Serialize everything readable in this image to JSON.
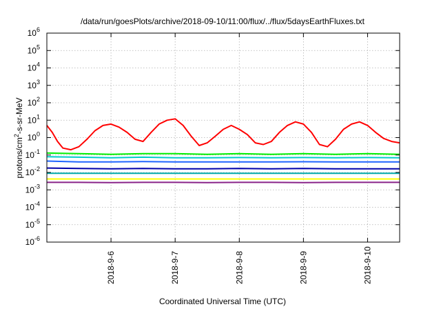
{
  "chart_data": {
    "type": "line",
    "title": "/data/run/goesPlots/archive/2018-09-10/11:00/flux/../flux/5daysEarthFluxes.txt",
    "xlabel": "Coordinated Universal Time (UTC)",
    "ylabel": {
      "prefix": "protons/cm",
      "sup": "2",
      "suffix": "-s-sr-MeV"
    },
    "y_scale": "log",
    "ylim": [
      1e-06,
      1000000.0
    ],
    "xlim": [
      "2018-09-05 00:00",
      "2018-09-10 12:00"
    ],
    "grid": true,
    "legend": "none",
    "y_ticks": [
      {
        "base": "10",
        "exp": "-6"
      },
      {
        "base": "10",
        "exp": "-5"
      },
      {
        "base": "10",
        "exp": "-4"
      },
      {
        "base": "10",
        "exp": "-3"
      },
      {
        "base": "10",
        "exp": "-2"
      },
      {
        "base": "10",
        "exp": "-1"
      },
      {
        "base": "10",
        "exp": "0"
      },
      {
        "base": "10",
        "exp": "1"
      },
      {
        "base": "10",
        "exp": "2"
      },
      {
        "base": "10",
        "exp": "3"
      },
      {
        "base": "10",
        "exp": "4"
      },
      {
        "base": "10",
        "exp": "5"
      },
      {
        "base": "10",
        "exp": "6"
      }
    ],
    "x_ticks": [
      {
        "label": "2018-9-6",
        "date": "2018-09-06"
      },
      {
        "label": "2018-9-7",
        "date": "2018-09-07"
      },
      {
        "label": "2018-9-8",
        "date": "2018-09-08"
      },
      {
        "label": "2018-9-9",
        "date": "2018-09-09"
      },
      {
        "label": "2018-9-10",
        "date": "2018-09-10"
      }
    ],
    "series": [
      {
        "color": "#ff0000",
        "x": [
          "2018-09-05 00:00",
          "2018-09-05 02:00",
          "2018-09-05 04:00",
          "2018-09-05 06:00",
          "2018-09-05 09:00",
          "2018-09-05 12:00",
          "2018-09-05 15:00",
          "2018-09-05 18:00",
          "2018-09-05 21:00",
          "2018-09-06 00:00",
          "2018-09-06 03:00",
          "2018-09-06 06:00",
          "2018-09-06 09:00",
          "2018-09-06 12:00",
          "2018-09-06 15:00",
          "2018-09-06 18:00",
          "2018-09-06 21:00",
          "2018-09-07 00:00",
          "2018-09-07 03:00",
          "2018-09-07 06:00",
          "2018-09-07 09:00",
          "2018-09-07 12:00",
          "2018-09-07 15:00",
          "2018-09-07 18:00",
          "2018-09-07 21:00",
          "2018-09-08 00:00",
          "2018-09-08 03:00",
          "2018-09-08 06:00",
          "2018-09-08 09:00",
          "2018-09-08 12:00",
          "2018-09-08 15:00",
          "2018-09-08 18:00",
          "2018-09-08 21:00",
          "2018-09-09 00:00",
          "2018-09-09 03:00",
          "2018-09-09 06:00",
          "2018-09-09 09:00",
          "2018-09-09 12:00",
          "2018-09-09 15:00",
          "2018-09-09 18:00",
          "2018-09-09 21:00",
          "2018-09-10 00:00",
          "2018-09-10 03:00",
          "2018-09-10 06:00",
          "2018-09-10 09:00",
          "2018-09-10 12:00"
        ],
        "y": [
          5,
          2,
          0.6,
          0.25,
          0.2,
          0.3,
          0.8,
          2.5,
          5,
          6,
          4,
          2,
          0.8,
          0.6,
          2,
          6,
          10,
          12,
          5,
          1.2,
          0.35,
          0.5,
          1.2,
          3,
          5,
          3,
          1.5,
          0.5,
          0.4,
          0.6,
          2,
          5,
          8,
          6,
          2,
          0.4,
          0.3,
          0.8,
          3,
          6,
          8,
          5,
          2,
          0.9,
          0.6,
          0.5
        ]
      },
      {
        "color": "#00ee00",
        "x": [
          "2018-09-05 00:00",
          "2018-09-05 12:00",
          "2018-09-06 00:00",
          "2018-09-06 12:00",
          "2018-09-07 00:00",
          "2018-09-07 12:00",
          "2018-09-08 00:00",
          "2018-09-08 12:00",
          "2018-09-09 00:00",
          "2018-09-09 12:00",
          "2018-09-10 00:00",
          "2018-09-10 12:00"
        ],
        "y": [
          0.13,
          0.12,
          0.11,
          0.12,
          0.12,
          0.11,
          0.12,
          0.11,
          0.12,
          0.11,
          0.12,
          0.11
        ]
      },
      {
        "color": "#00cccc",
        "x": [
          "2018-09-05 00:00",
          "2018-09-05 12:00",
          "2018-09-06 00:00",
          "2018-09-06 12:00",
          "2018-09-07 00:00",
          "2018-09-07 12:00",
          "2018-09-08 00:00",
          "2018-09-08 12:00",
          "2018-09-09 00:00",
          "2018-09-09 12:00",
          "2018-09-10 00:00",
          "2018-09-10 12:00"
        ],
        "y": [
          0.08,
          0.075,
          0.07,
          0.075,
          0.07,
          0.07,
          0.072,
          0.07,
          0.072,
          0.07,
          0.072,
          0.07
        ]
      },
      {
        "color": "#1e64ff",
        "x": [
          "2018-09-05 00:00",
          "2018-09-05 12:00",
          "2018-09-06 00:00",
          "2018-09-06 12:00",
          "2018-09-07 00:00",
          "2018-09-07 12:00",
          "2018-09-08 00:00",
          "2018-09-08 12:00",
          "2018-09-09 00:00",
          "2018-09-09 12:00",
          "2018-09-10 00:00",
          "2018-09-10 12:00"
        ],
        "y": [
          0.045,
          0.04,
          0.04,
          0.042,
          0.04,
          0.04,
          0.04,
          0.04,
          0.041,
          0.04,
          0.04,
          0.04
        ]
      },
      {
        "color": "#0000aa",
        "x": [
          "2018-09-05 00:00",
          "2018-09-05 12:00",
          "2018-09-06 00:00",
          "2018-09-06 12:00",
          "2018-09-07 00:00",
          "2018-09-07 12:00",
          "2018-09-08 00:00",
          "2018-09-08 12:00",
          "2018-09-09 00:00",
          "2018-09-09 12:00",
          "2018-09-10 00:00",
          "2018-09-10 12:00"
        ],
        "y": [
          0.018,
          0.017,
          0.016,
          0.017,
          0.016,
          0.016,
          0.017,
          0.016,
          0.017,
          0.016,
          0.016,
          0.016
        ]
      },
      {
        "color": "#00aaaa",
        "x": [
          "2018-09-05 00:00",
          "2018-09-05 12:00",
          "2018-09-06 00:00",
          "2018-09-06 12:00",
          "2018-09-07 00:00",
          "2018-09-07 12:00",
          "2018-09-08 00:00",
          "2018-09-08 12:00",
          "2018-09-09 00:00",
          "2018-09-09 12:00",
          "2018-09-10 00:00",
          "2018-09-10 12:00"
        ],
        "y": [
          0.009,
          0.009,
          0.009,
          0.009,
          0.009,
          0.009,
          0.009,
          0.009,
          0.009,
          0.009,
          0.009,
          0.009
        ]
      },
      {
        "color": "#ffff00",
        "x": [
          "2018-09-05 00:00",
          "2018-09-05 12:00",
          "2018-09-06 00:00",
          "2018-09-06 12:00",
          "2018-09-07 00:00",
          "2018-09-07 12:00",
          "2018-09-08 00:00",
          "2018-09-08 12:00",
          "2018-09-09 00:00",
          "2018-09-09 12:00",
          "2018-09-10 00:00",
          "2018-09-10 12:00"
        ],
        "y": [
          0.0042,
          0.0042,
          0.0042,
          0.0042,
          0.0042,
          0.0042,
          0.0042,
          0.0042,
          0.0042,
          0.0042,
          0.0042,
          0.0042
        ]
      },
      {
        "color": "#882288",
        "x": [
          "2018-09-05 00:00",
          "2018-09-05 12:00",
          "2018-09-06 00:00",
          "2018-09-06 12:00",
          "2018-09-07 00:00",
          "2018-09-07 12:00",
          "2018-09-08 00:00",
          "2018-09-08 12:00",
          "2018-09-09 00:00",
          "2018-09-09 12:00",
          "2018-09-10 00:00",
          "2018-09-10 12:00"
        ],
        "y": [
          0.0027,
          0.0027,
          0.0026,
          0.0027,
          0.0027,
          0.0026,
          0.0027,
          0.0027,
          0.0026,
          0.0027,
          0.0027,
          0.0027
        ]
      }
    ]
  }
}
